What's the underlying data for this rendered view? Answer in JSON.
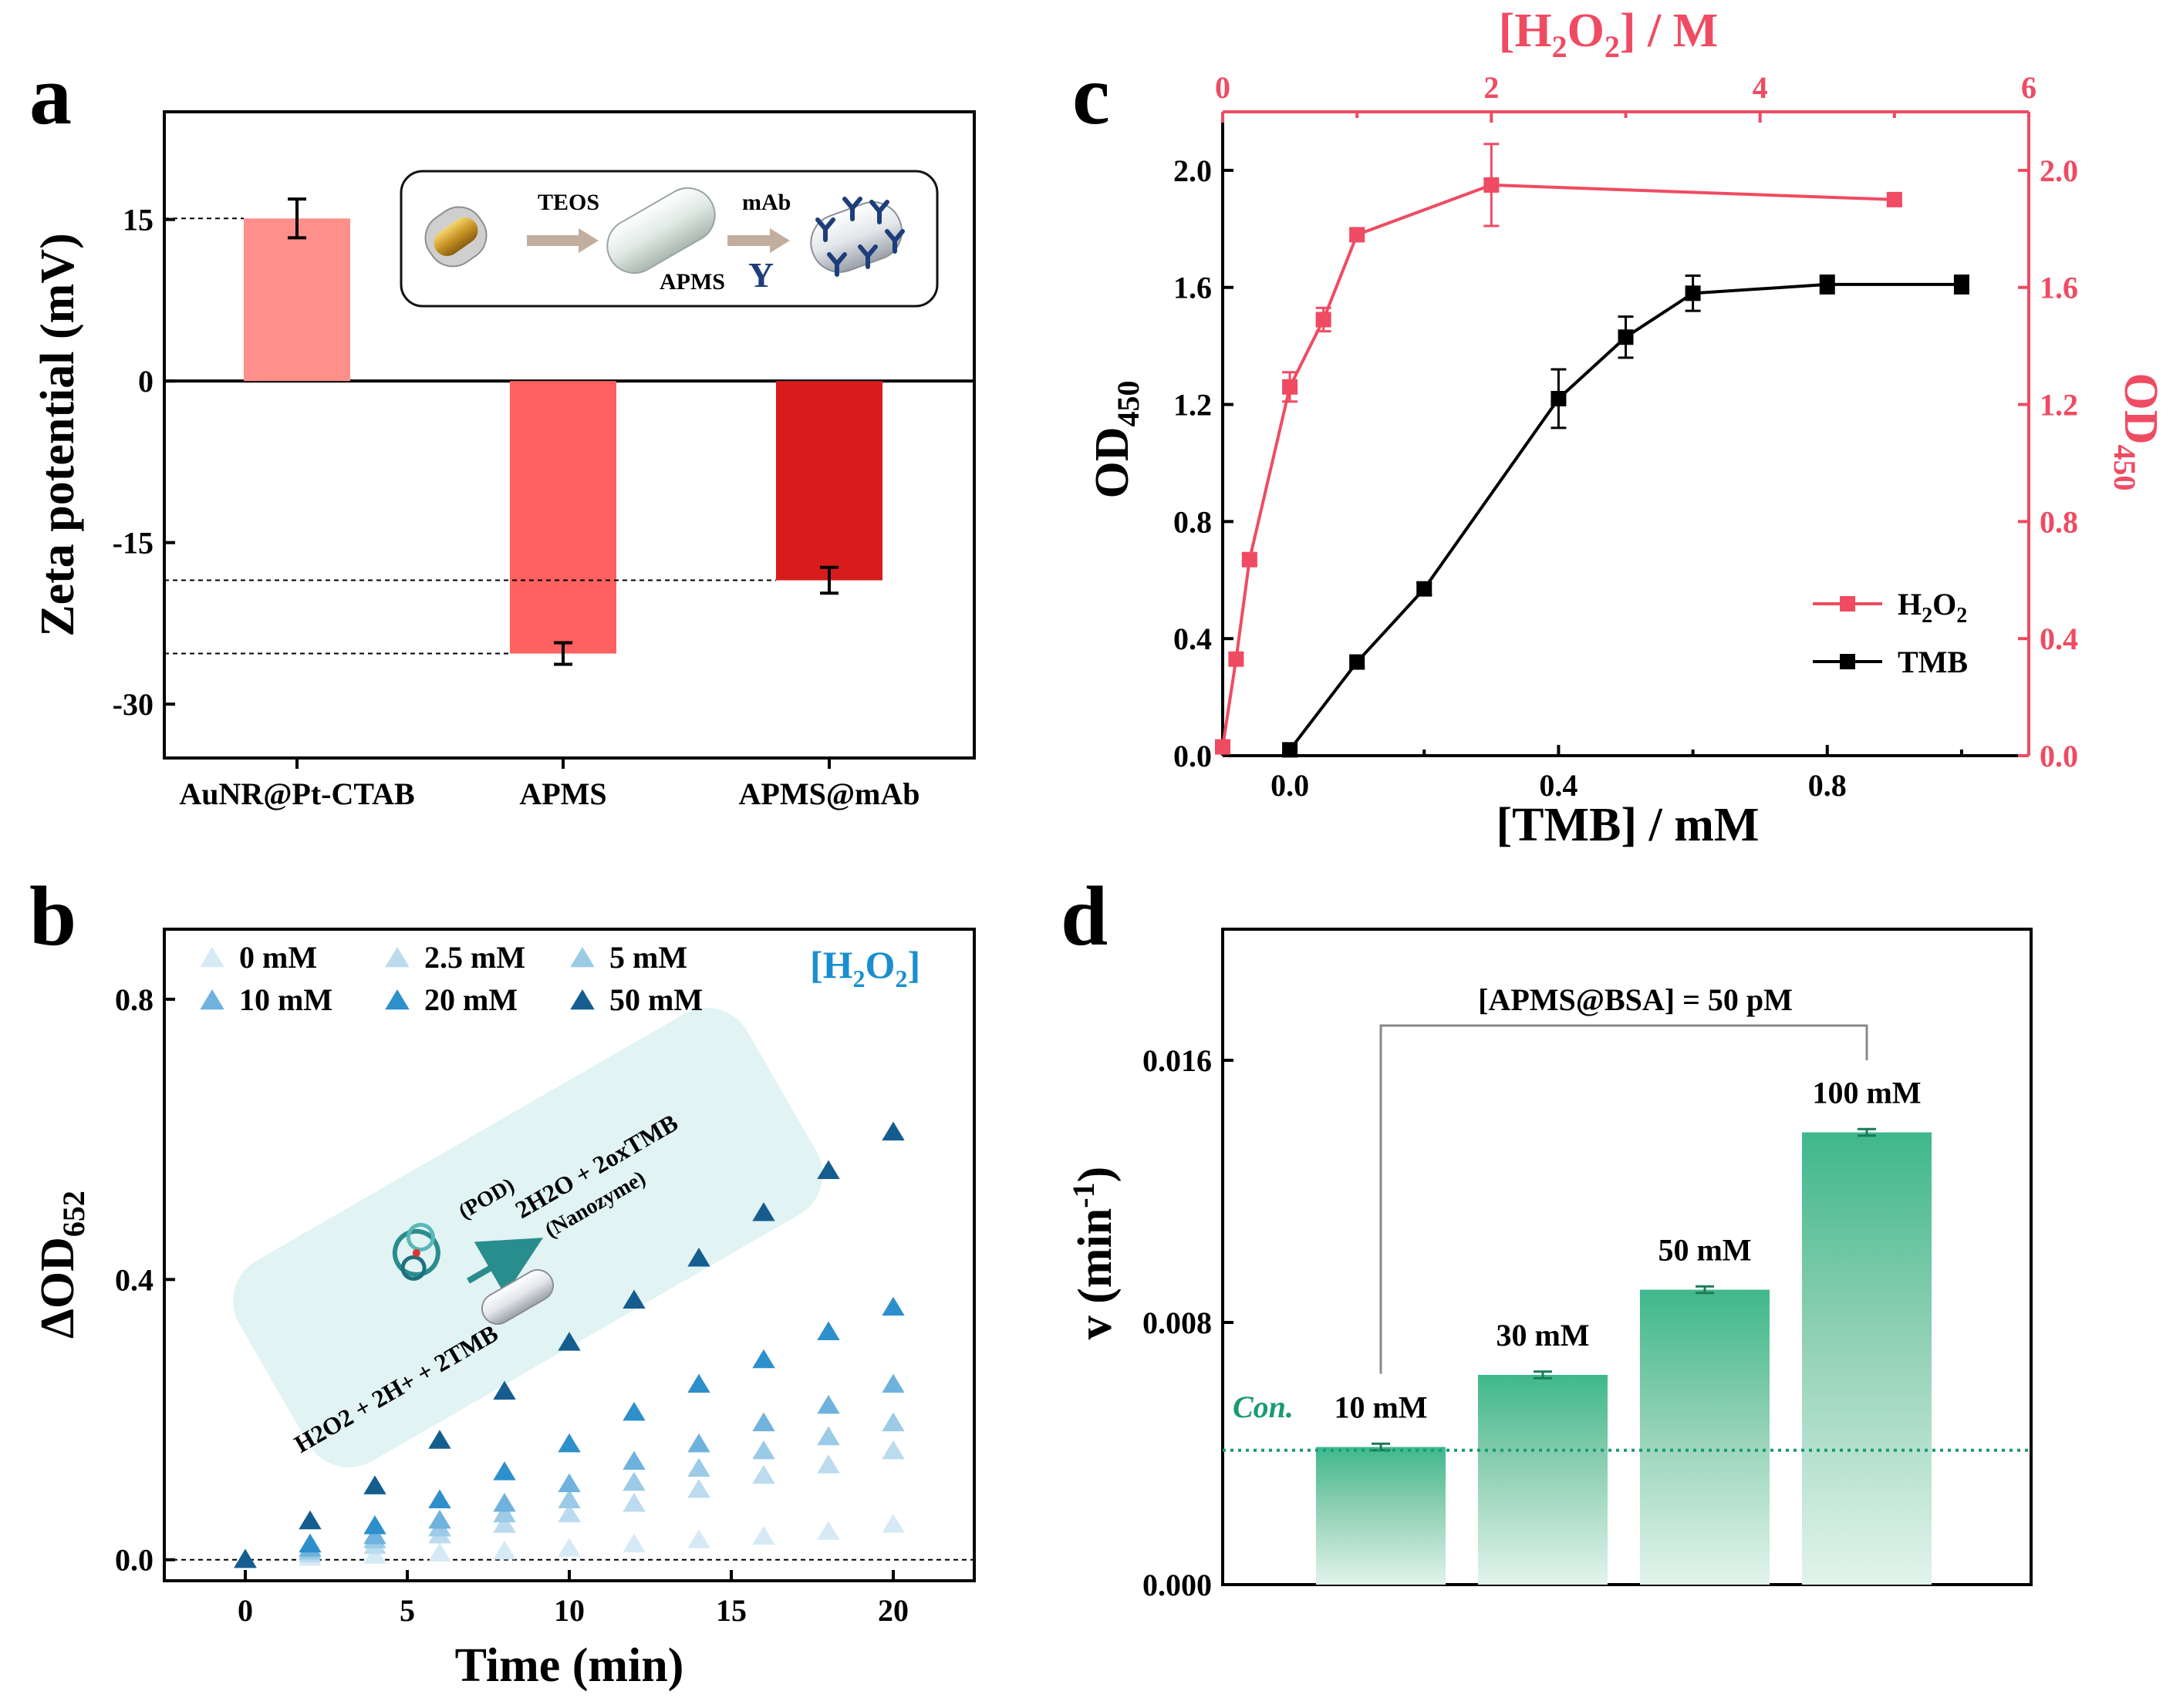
{
  "colors": {
    "red_light": "#ff8f8a",
    "red_mid": "#ff6060",
    "red_dark": "#d81b1b",
    "pink": "#ef4b62",
    "green": "#3fb88b",
    "green_dot": "#1a9a74",
    "teal_box": "#e1f3f3",
    "arrow_teal": "#2a8d8d",
    "blue_shades": [
      "#d6eaf6",
      "#bcdbef",
      "#9bcbe6",
      "#6fb2dd",
      "#2d8fcb",
      "#155d8f"
    ]
  },
  "panels": {
    "a": {
      "letter": "a"
    },
    "b": {
      "letter": "b"
    },
    "c": {
      "letter": "c"
    },
    "d": {
      "letter": "d"
    }
  },
  "chart_data": [
    {
      "id": "a",
      "type": "bar",
      "categories": [
        "AuNR@Pt-CTAB",
        "APMS",
        "APMS@mAb"
      ],
      "values": [
        15.1,
        -25.3,
        -18.5
      ],
      "errors": [
        1.8,
        1.0,
        1.2
      ],
      "ylabel": "Zeta potential (mV)",
      "ylim": [
        -35,
        25
      ],
      "yticks": [
        15,
        0,
        -15,
        -30
      ],
      "reference_lines": [
        15.1,
        -18.5,
        -25.3
      ],
      "inset": {
        "step1": "TEOS",
        "step2": "mAb",
        "product_label": "APMS",
        "antibody_symbol": "Y"
      }
    },
    {
      "id": "b",
      "type": "scatter",
      "xlabel": "Time (min)",
      "ylabel": "ΔOD",
      "ylabel_sub": "652",
      "xlim": [
        -2.5,
        22.5
      ],
      "ylim": [
        -0.03,
        0.9
      ],
      "xticks": [
        0,
        5,
        10,
        15,
        20
      ],
      "yticks": [
        0.0,
        0.4,
        0.8
      ],
      "x": [
        0,
        2,
        4,
        6,
        8,
        10,
        12,
        14,
        16,
        18,
        20
      ],
      "legend_title": "[H2O2]",
      "series": [
        {
          "name": "0 mM",
          "values": [
            0,
            0.003,
            0.006,
            0.009,
            0.012,
            0.016,
            0.022,
            0.028,
            0.033,
            0.04,
            0.05
          ]
        },
        {
          "name": "2.5 mM",
          "values": [
            0,
            0.008,
            0.02,
            0.035,
            0.05,
            0.065,
            0.08,
            0.1,
            0.12,
            0.135,
            0.155
          ]
        },
        {
          "name": "5 mM",
          "values": [
            0,
            0.012,
            0.028,
            0.045,
            0.065,
            0.085,
            0.11,
            0.13,
            0.155,
            0.175,
            0.195
          ]
        },
        {
          "name": "10 mM",
          "values": [
            0,
            0.016,
            0.034,
            0.056,
            0.08,
            0.108,
            0.14,
            0.165,
            0.195,
            0.22,
            0.25
          ]
        },
        {
          "name": "20 mM",
          "values": [
            0,
            0.022,
            0.048,
            0.085,
            0.125,
            0.165,
            0.21,
            0.25,
            0.285,
            0.325,
            0.36
          ]
        },
        {
          "name": "50 mM",
          "values": [
            0,
            0.055,
            0.105,
            0.17,
            0.24,
            0.31,
            0.37,
            0.43,
            0.495,
            0.555,
            0.61
          ]
        }
      ],
      "scheme": {
        "left": "H2O2 + 2H+ + 2TMB",
        "right": "2H2O + 2oxTMB",
        "enzyme": "(POD)",
        "nanozyme": "(Nanozyme)"
      }
    },
    {
      "id": "c",
      "type": "line",
      "xlabel": "[TMB] / mM",
      "xlabel_top": "[H2O2] / M",
      "ylabel_left": "OD",
      "ylabel_right": "OD",
      "ylabel_sub": "450",
      "xlim": [
        -0.1,
        1.1
      ],
      "xlim_top": [
        0,
        6
      ],
      "ylim": [
        0,
        2.2
      ],
      "xticks": [
        0.0,
        0.4,
        0.8
      ],
      "xticks_top": [
        0,
        2,
        4,
        6
      ],
      "yticks": [
        0.0,
        0.4,
        0.8,
        1.2,
        1.6,
        2.0
      ],
      "series": [
        {
          "name": "TMB",
          "axis": "bottom",
          "x": [
            0,
            0.1,
            0.2,
            0.4,
            0.5,
            0.6,
            0.8,
            1.0
          ],
          "values": [
            0.02,
            0.32,
            0.57,
            1.22,
            1.43,
            1.58,
            1.61,
            1.61
          ],
          "errors": [
            0.01,
            0.02,
            0.02,
            0.1,
            0.07,
            0.06,
            0.03,
            0.03
          ]
        },
        {
          "name": "H2O2",
          "axis": "top",
          "x": [
            0,
            0.1,
            0.2,
            0.5,
            0.75,
            1.0,
            2.0,
            5.0
          ],
          "values": [
            0.03,
            0.33,
            0.67,
            1.26,
            1.49,
            1.78,
            1.95,
            1.9
          ],
          "errors": [
            0.01,
            0.02,
            0.02,
            0.05,
            0.04,
            0.02,
            0.14,
            0.02
          ]
        }
      ]
    },
    {
      "id": "d",
      "type": "bar",
      "categories": [
        "10 mM",
        "30 mM",
        "50 mM",
        "100 mM"
      ],
      "values": [
        0.0042,
        0.0064,
        0.009,
        0.0138
      ],
      "errors": [
        0.0001,
        0.0001,
        0.0001,
        0.0001
      ],
      "ylabel": "v (min-1)",
      "ylim": [
        0,
        0.02
      ],
      "yticks": [
        0.0,
        0.008,
        0.016
      ],
      "ytick_labels": [
        "0.000",
        "0.008",
        "0.016"
      ],
      "control_value": 0.0041,
      "control_label": "Con.",
      "bracket_label": "[APMS@BSA] = 50 pM"
    }
  ]
}
